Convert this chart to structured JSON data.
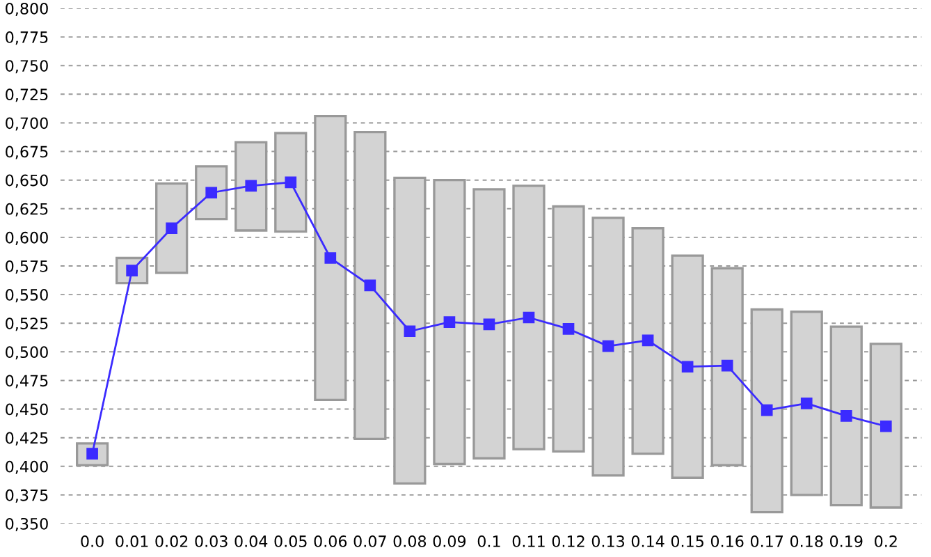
{
  "chart_data": {
    "type": "bar",
    "categories": [
      "0.0",
      "0.01",
      "0.02",
      "0.03",
      "0.04",
      "0.05",
      "0.06",
      "0.07",
      "0.08",
      "0.09",
      "0.1",
      "0.11",
      "0.12",
      "0.13",
      "0.14",
      "0.15",
      "0.16",
      "0.17",
      "0.18",
      "0.19",
      "0.2"
    ],
    "series": [
      {
        "color": "#d3d3d3",
        "base": [
          0.401,
          0.56,
          0.569,
          0.616,
          0.606,
          0.605,
          0.458,
          0.424,
          0.385,
          0.402,
          0.407,
          0.415,
          0.413,
          0.392,
          0.411,
          0.39,
          0.401,
          0.36,
          0.375,
          0.366,
          0.364
        ],
        "values": [
          0.019,
          0.022,
          0.078,
          0.046,
          0.077,
          0.086,
          0.248,
          0.268,
          0.267,
          0.248,
          0.235,
          0.23,
          0.214,
          0.225,
          0.197,
          0.194,
          0.172,
          0.177,
          0.16,
          0.156,
          0.143
        ]
      },
      {
        "type": "line",
        "color": "#3b2bff",
        "marker": "square",
        "line_style": "solid",
        "values": [
          0.411,
          0.571,
          0.608,
          0.639,
          0.645,
          0.648,
          0.582,
          0.558,
          0.518,
          0.526,
          0.524,
          0.53,
          0.52,
          0.505,
          0.51,
          0.487,
          0.488,
          0.449,
          0.455,
          0.444,
          0.435
        ]
      }
    ],
    "ylim": [
      0.35,
      0.8
    ],
    "yticks": [
      {
        "value": 0.35,
        "label": "0,350"
      },
      {
        "value": 0.375,
        "label": "0,375"
      },
      {
        "value": 0.4,
        "label": "0,400"
      },
      {
        "value": 0.425,
        "label": "0,425"
      },
      {
        "value": 0.45,
        "label": "0,450"
      },
      {
        "value": 0.475,
        "label": "0,475"
      },
      {
        "value": 0.5,
        "label": "0,500"
      },
      {
        "value": 0.525,
        "label": "0,525"
      },
      {
        "value": 0.55,
        "label": "0,550"
      },
      {
        "value": 0.575,
        "label": "0,575"
      },
      {
        "value": 0.6,
        "label": "0,600"
      },
      {
        "value": 0.625,
        "label": "0,625"
      },
      {
        "value": 0.65,
        "label": "0,650"
      },
      {
        "value": 0.675,
        "label": "0,675"
      },
      {
        "value": 0.7,
        "label": "0,700"
      },
      {
        "value": 0.725,
        "label": "0,725"
      },
      {
        "value": 0.75,
        "label": "0,750"
      },
      {
        "value": 0.775,
        "label": "0,775"
      },
      {
        "value": 0.8,
        "label": "0,800"
      }
    ],
    "grid": "y",
    "legend": false
  }
}
